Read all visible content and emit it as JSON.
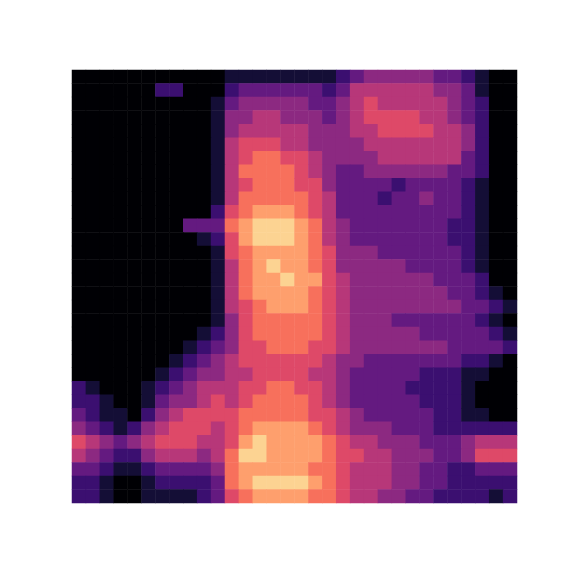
{
  "chart_data": {
    "type": "heatmap",
    "tick_labels": false,
    "z": [
      [
        0,
        0,
        0,
        0,
        0,
        0,
        0,
        0,
        0,
        0,
        0,
        1,
        1,
        1,
        1,
        1,
        1,
        1,
        1,
        2,
        3,
        4,
        4,
        4,
        4,
        4,
        3,
        3,
        2,
        1,
        0,
        0
      ],
      [
        0,
        0,
        0,
        0,
        0,
        0,
        2,
        2,
        0,
        0,
        0,
        2,
        3,
        3,
        3,
        3,
        3,
        3,
        2,
        3,
        5,
        5,
        5,
        5,
        5,
        5,
        4,
        4,
        3,
        1,
        0,
        0
      ],
      [
        0,
        0,
        0,
        0,
        0,
        0,
        0,
        0,
        0,
        0,
        1,
        3,
        4,
        4,
        4,
        4,
        4,
        3,
        3,
        4,
        5,
        6,
        5,
        5,
        5,
        5,
        5,
        4,
        3,
        2,
        0,
        0
      ],
      [
        0,
        0,
        0,
        0,
        0,
        0,
        0,
        0,
        0,
        0,
        1,
        4,
        4,
        5,
        5,
        4,
        4,
        4,
        3,
        4,
        5,
        6,
        6,
        6,
        6,
        5,
        5,
        4,
        3,
        2,
        0,
        0
      ],
      [
        0,
        0,
        0,
        0,
        0,
        0,
        0,
        0,
        0,
        0,
        1,
        4,
        5,
        5,
        5,
        5,
        5,
        4,
        4,
        4,
        5,
        5,
        6,
        6,
        6,
        6,
        5,
        5,
        4,
        2,
        0,
        0
      ],
      [
        0,
        0,
        0,
        0,
        0,
        0,
        0,
        0,
        0,
        0,
        1,
        5,
        6,
        6,
        6,
        5,
        5,
        4,
        4,
        4,
        4,
        5,
        5,
        5,
        5,
        5,
        5,
        5,
        4,
        2,
        0,
        0
      ],
      [
        0,
        0,
        0,
        0,
        0,
        0,
        0,
        0,
        0,
        0,
        1,
        5,
        6,
        7,
        7,
        6,
        6,
        5,
        4,
        4,
        4,
        4,
        5,
        5,
        5,
        5,
        5,
        5,
        3,
        2,
        0,
        0
      ],
      [
        0,
        0,
        0,
        0,
        0,
        0,
        0,
        0,
        0,
        0,
        1,
        5,
        7,
        7,
        7,
        7,
        6,
        5,
        4,
        3,
        3,
        4,
        4,
        4,
        4,
        4,
        4,
        3,
        3,
        2,
        0,
        0
      ],
      [
        0,
        0,
        0,
        0,
        0,
        0,
        0,
        0,
        0,
        0,
        1,
        5,
        6,
        7,
        7,
        7,
        6,
        6,
        4,
        3,
        3,
        3,
        3,
        2,
        3,
        3,
        3,
        3,
        2,
        1,
        0,
        0
      ],
      [
        0,
        0,
        0,
        0,
        0,
        0,
        0,
        0,
        0,
        0,
        1,
        5,
        7,
        7,
        7,
        7,
        7,
        6,
        5,
        3,
        3,
        3,
        2,
        3,
        3,
        4,
        3,
        3,
        2,
        1,
        0,
        0
      ],
      [
        0,
        0,
        0,
        0,
        0,
        0,
        0,
        0,
        0,
        0,
        2,
        6,
        7,
        8,
        8,
        8,
        7,
        6,
        5,
        3,
        3,
        3,
        3,
        3,
        3,
        3,
        3,
        3,
        2,
        1,
        0,
        0
      ],
      [
        0,
        0,
        0,
        0,
        0,
        0,
        0,
        0,
        3,
        3,
        3,
        7,
        8,
        9,
        9,
        9,
        8,
        7,
        5,
        4,
        3,
        3,
        3,
        3,
        3,
        3,
        3,
        2,
        2,
        1,
        0,
        0
      ],
      [
        0,
        0,
        0,
        0,
        0,
        0,
        0,
        0,
        0,
        1,
        2,
        6,
        8,
        9,
        9,
        9,
        8,
        7,
        5,
        4,
        3,
        3,
        3,
        3,
        3,
        3,
        3,
        2,
        2,
        1,
        0,
        0
      ],
      [
        0,
        0,
        0,
        0,
        0,
        0,
        0,
        0,
        0,
        0,
        1,
        6,
        7,
        8,
        8,
        8,
        8,
        7,
        6,
        4,
        4,
        4,
        3,
        3,
        3,
        3,
        3,
        3,
        2,
        1,
        0,
        0
      ],
      [
        0,
        0,
        0,
        0,
        0,
        0,
        0,
        0,
        0,
        0,
        1,
        5,
        7,
        8,
        9,
        8,
        8,
        7,
        6,
        4,
        4,
        4,
        4,
        4,
        3,
        3,
        3,
        3,
        2,
        1,
        0,
        0
      ],
      [
        0,
        0,
        0,
        0,
        0,
        0,
        0,
        0,
        0,
        0,
        1,
        5,
        7,
        8,
        8,
        9,
        8,
        8,
        6,
        5,
        4,
        4,
        4,
        4,
        4,
        4,
        3,
        3,
        3,
        2,
        0,
        0
      ],
      [
        0,
        0,
        0,
        0,
        0,
        0,
        0,
        0,
        0,
        0,
        1,
        5,
        7,
        8,
        8,
        8,
        8,
        7,
        6,
        5,
        4,
        4,
        4,
        4,
        4,
        4,
        4,
        3,
        3,
        2,
        1,
        0
      ],
      [
        0,
        0,
        0,
        0,
        0,
        0,
        0,
        0,
        0,
        0,
        1,
        5,
        6,
        7,
        8,
        8,
        8,
        7,
        6,
        5,
        4,
        4,
        4,
        4,
        4,
        4,
        4,
        4,
        3,
        3,
        2,
        1
      ],
      [
        0,
        0,
        0,
        0,
        0,
        0,
        0,
        0,
        0,
        0,
        1,
        4,
        6,
        7,
        7,
        7,
        7,
        7,
        6,
        5,
        4,
        4,
        4,
        3,
        3,
        3,
        3,
        3,
        3,
        2,
        1,
        0
      ],
      [
        0,
        0,
        0,
        0,
        0,
        0,
        0,
        0,
        0,
        1,
        2,
        4,
        6,
        7,
        7,
        7,
        7,
        7,
        6,
        5,
        4,
        4,
        4,
        4,
        4,
        3,
        3,
        3,
        3,
        3,
        2,
        1
      ],
      [
        0,
        0,
        0,
        0,
        0,
        0,
        0,
        0,
        1,
        2,
        3,
        4,
        6,
        6,
        7,
        7,
        7,
        6,
        6,
        5,
        4,
        4,
        4,
        4,
        4,
        4,
        4,
        3,
        3,
        3,
        3,
        2
      ],
      [
        0,
        0,
        0,
        0,
        0,
        0,
        0,
        1,
        2,
        3,
        4,
        5,
        6,
        6,
        6,
        6,
        6,
        6,
        5,
        4,
        4,
        3,
        3,
        3,
        3,
        3,
        3,
        3,
        2,
        2,
        1,
        0
      ],
      [
        0,
        0,
        0,
        0,
        0,
        0,
        1,
        2,
        3,
        4,
        4,
        5,
        5,
        6,
        6,
        6,
        6,
        5,
        5,
        4,
        3,
        3,
        3,
        3,
        3,
        2,
        2,
        2,
        1,
        1,
        0,
        0
      ],
      [
        2,
        1,
        0,
        0,
        0,
        1,
        2,
        3,
        4,
        5,
        5,
        5,
        6,
        6,
        7,
        7,
        6,
        6,
        5,
        4,
        3,
        3,
        3,
        3,
        2,
        2,
        2,
        2,
        1,
        0,
        0,
        0
      ],
      [
        2,
        2,
        1,
        0,
        0,
        1,
        3,
        4,
        4,
        5,
        6,
        5,
        6,
        7,
        7,
        7,
        7,
        6,
        5,
        4,
        3,
        3,
        3,
        3,
        3,
        2,
        2,
        2,
        1,
        0,
        0,
        0
      ],
      [
        3,
        2,
        1,
        1,
        0,
        2,
        4,
        5,
        6,
        6,
        6,
        6,
        7,
        7,
        7,
        7,
        7,
        6,
        6,
        5,
        4,
        3,
        3,
        3,
        3,
        3,
        2,
        2,
        1,
        1,
        0,
        0
      ],
      [
        4,
        3,
        2,
        1,
        2,
        4,
        5,
        6,
        6,
        6,
        5,
        6,
        7,
        8,
        8,
        8,
        8,
        7,
        6,
        5,
        4,
        4,
        4,
        3,
        3,
        3,
        2,
        2,
        2,
        2,
        2,
        2
      ],
      [
        6,
        5,
        4,
        3,
        4,
        5,
        6,
        6,
        6,
        5,
        5,
        6,
        8,
        9,
        8,
        8,
        8,
        8,
        7,
        6,
        5,
        5,
        4,
        4,
        4,
        3,
        3,
        3,
        4,
        5,
        5,
        5
      ],
      [
        5,
        4,
        3,
        2,
        2,
        4,
        5,
        5,
        5,
        4,
        5,
        7,
        9,
        9,
        8,
        8,
        8,
        8,
        7,
        6,
        6,
        5,
        5,
        4,
        4,
        4,
        3,
        3,
        4,
        6,
        6,
        6
      ],
      [
        3,
        3,
        2,
        1,
        1,
        2,
        3,
        3,
        3,
        3,
        4,
        7,
        8,
        8,
        8,
        8,
        8,
        7,
        7,
        6,
        5,
        5,
        5,
        4,
        4,
        3,
        3,
        2,
        2,
        3,
        3,
        3
      ],
      [
        2,
        2,
        1,
        0,
        0,
        1,
        2,
        2,
        2,
        2,
        3,
        7,
        8,
        9,
        9,
        9,
        9,
        8,
        7,
        6,
        5,
        5,
        5,
        4,
        4,
        3,
        3,
        2,
        2,
        2,
        2,
        2
      ],
      [
        2,
        2,
        1,
        0,
        0,
        1,
        1,
        1,
        1,
        2,
        3,
        6,
        7,
        8,
        8,
        8,
        8,
        7,
        7,
        6,
        5,
        5,
        4,
        4,
        3,
        3,
        2,
        2,
        2,
        2,
        1,
        2
      ]
    ]
  }
}
